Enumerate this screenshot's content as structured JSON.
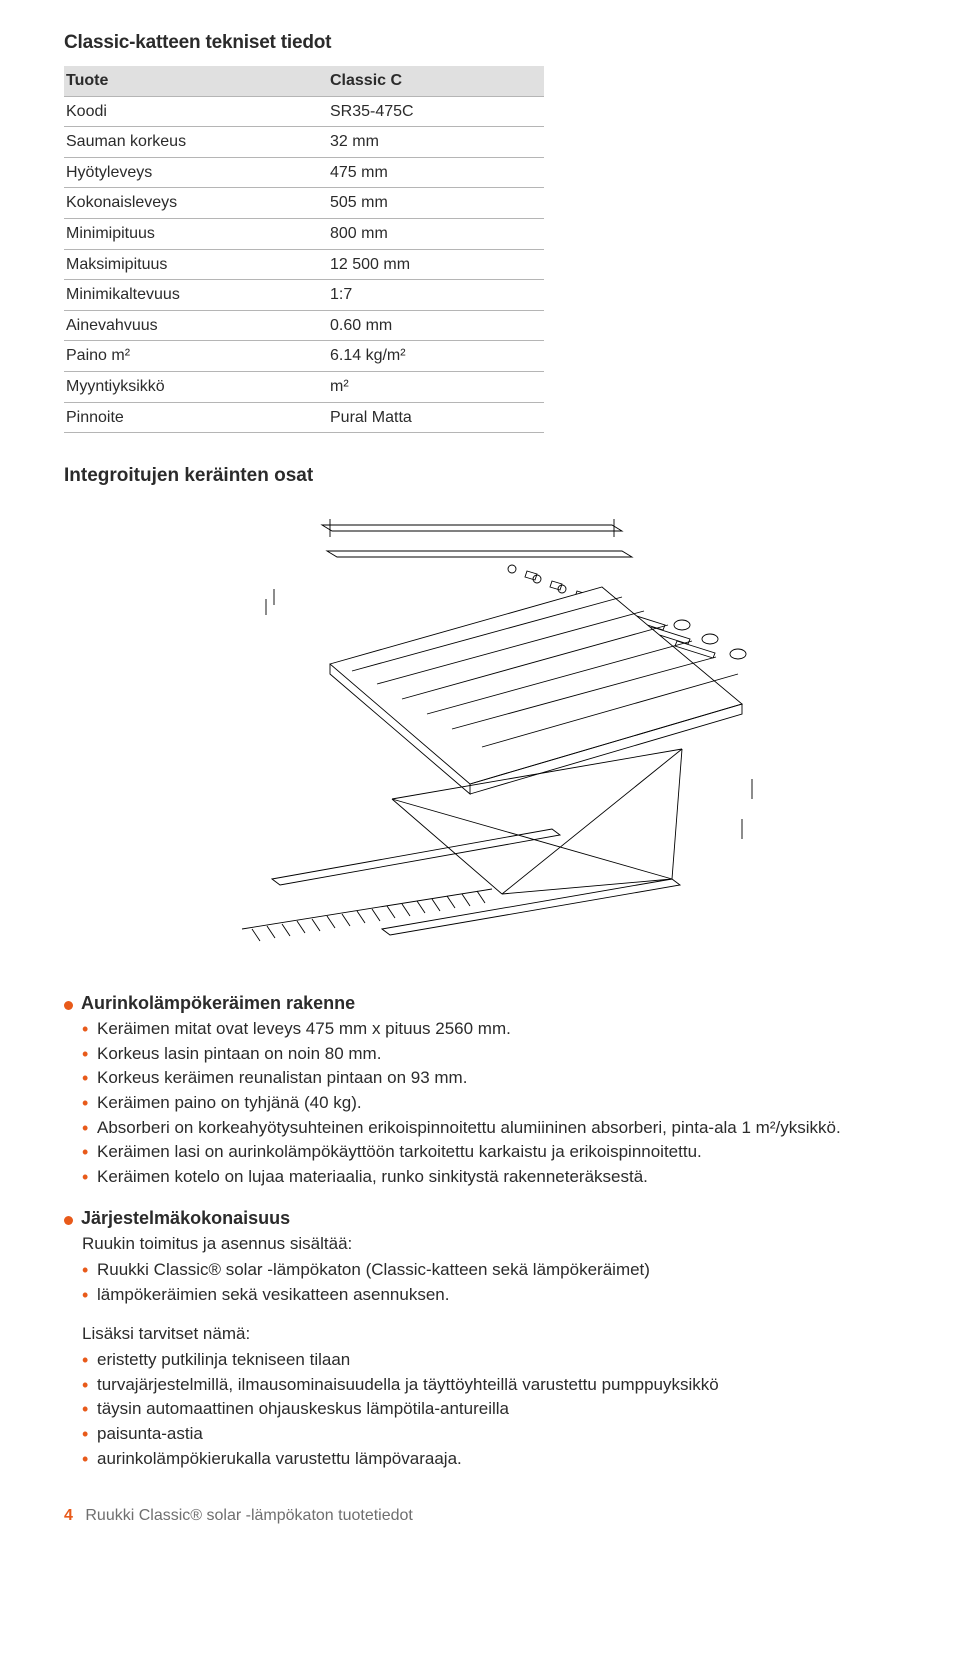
{
  "colors": {
    "orange": "#e85a1a",
    "grayHeader": "#e0e0e0",
    "border": "#b5b5b5",
    "textMuted": "#6f6f6f",
    "text": "#2b2b2b",
    "bg": "#ffffff"
  },
  "title": "Classic-katteen tekniset tiedot",
  "table": {
    "headerLeft": "Tuote",
    "headerRight": "Classic C",
    "rows": [
      {
        "k": "Koodi",
        "v": "SR35-475C"
      },
      {
        "k": "Sauman korkeus",
        "v": "32 mm"
      },
      {
        "k": "Hyötyleveys",
        "v": "475 mm"
      },
      {
        "k": "Kokonaisleveys",
        "v": "505 mm"
      },
      {
        "k": "Minimipituus",
        "v": "800 mm"
      },
      {
        "k": "Maksimipituus",
        "v": "12 500 mm"
      },
      {
        "k": "Minimikaltevuus",
        "v": "1:7"
      },
      {
        "k": "Ainevahvuus",
        "v": "0.60 mm"
      },
      {
        "k": "Paino m²",
        "v": "6.14 kg/m²"
      },
      {
        "k": "Myyntiyksikkö",
        "v": "m²"
      },
      {
        "k": "Pinnoite",
        "v": "Pural Matta"
      }
    ]
  },
  "diagramTitle": "Integroitujen keräinten osat",
  "sections": {
    "rakenne": {
      "heading": "Aurinkolämpökeräimen rakenne",
      "items": [
        "Keräimen mitat ovat leveys 475 mm x pituus 2560 mm.",
        "Korkeus lasin pintaan on noin 80 mm.",
        "Korkeus keräimen reunalistan pintaan on 93 mm.",
        "Keräimen paino on tyhjänä (40 kg).",
        "Absorberi on korkeahyötysuhteinen erikoispinnoitettu alumiininen absorberi, pinta-ala 1 m²/yksikkö.",
        "Keräimen lasi on aurinkolämpökäyttöön tarkoitettu karkaistu ja erikoispinnoitettu.",
        "Keräimen kotelo on lujaa materiaalia, runko sinkitystä rakenneteräksestä."
      ]
    },
    "jarjestelma": {
      "heading": "Järjestelmäkokonaisuus",
      "intro": "Ruukin toimitus ja asennus sisältää:",
      "items": [
        "Ruukki Classic® solar -lämpökaton (Classic-katteen sekä lämpökeräimet)",
        "lämpökeräimien sekä vesikatteen asennuksen."
      ],
      "intro2": "Lisäksi tarvitset nämä:",
      "items2": [
        "eristetty putkilinja tekniseen tilaan",
        "turvajärjestelmillä, ilmausominaisuudella ja täyttöyhteillä varustettu pumppuyksikkö",
        "täysin automaattinen ohjauskeskus lämpötila-antureilla",
        "paisunta-astia",
        "aurinkolämpökierukalla varustettu lämpövaraaja."
      ]
    }
  },
  "footer": {
    "page": "4",
    "text": "Ruukki Classic® solar -lämpökaton tuotetiedot"
  }
}
